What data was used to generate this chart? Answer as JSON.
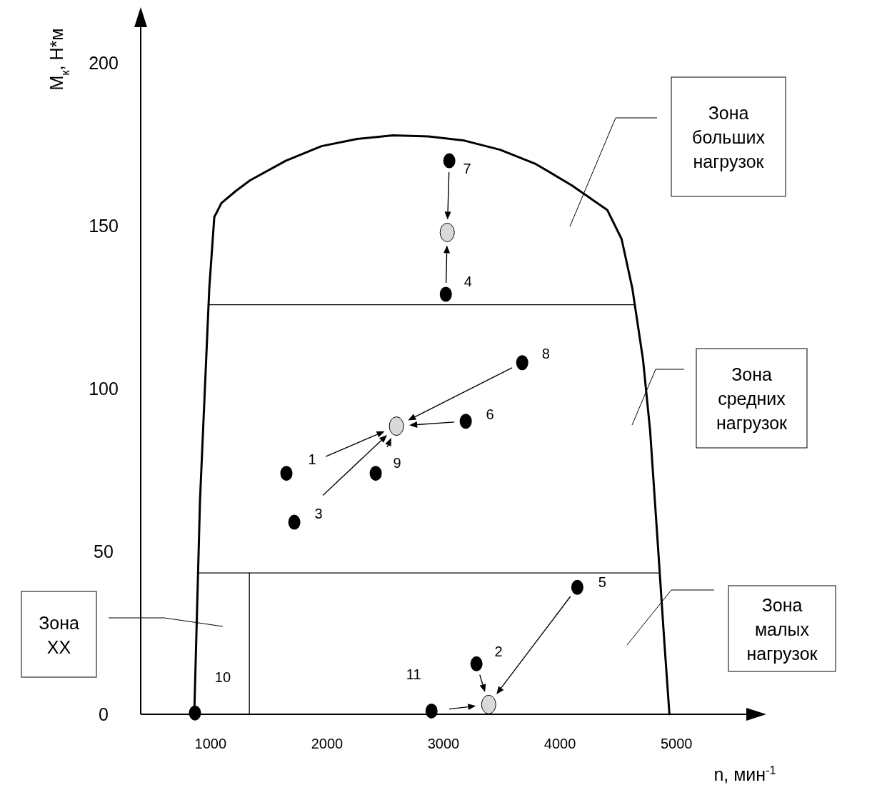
{
  "chart_data": {
    "type": "scatter",
    "xlabel": "n, мин$^{-1}$",
    "ylabel": "M$_{к}$, Н*м",
    "xlim": [
      400,
      5600
    ],
    "ylim": [
      0,
      215
    ],
    "xticks": [
      1000,
      2000,
      3000,
      4000,
      5000
    ],
    "yticks": [
      0,
      50,
      100,
      150,
      200
    ],
    "grid": false,
    "series": [
      {
        "type": "line",
        "color": "#000000",
        "marker": "none",
        "x": [
          860,
          909,
          989,
          1032,
          1093,
          1216,
          1339,
          1645,
          1952,
          2259,
          2566,
          2872,
          3179,
          3486,
          3793,
          4099,
          4406,
          4529,
          4621,
          4713,
          4774,
          4836,
          4897,
          4940
        ],
        "values": [
          0,
          65.4,
          130.9,
          152.7,
          157,
          160.7,
          164,
          170,
          174.5,
          176.7,
          177.8,
          177.5,
          176.2,
          173.4,
          169,
          162.5,
          154.9,
          146,
          130.9,
          109,
          87.2,
          54.5,
          21.8,
          0
        ]
      },
      {
        "type": "line",
        "color": "#000000",
        "marker": "none",
        "x": [
          989,
          4639
        ],
        "values": [
          125.8,
          125.8
        ]
      },
      {
        "type": "line",
        "color": "#000000",
        "marker": "none",
        "x": [
          903,
          4848
        ],
        "values": [
          43.4,
          43.4
        ]
      },
      {
        "type": "line",
        "color": "#000000",
        "marker": "none",
        "x": [
          1333,
          1333
        ],
        "values": [
          0,
          43.4
        ]
      },
      {
        "color": "#000000",
        "marker": "circle",
        "x": [
          1651,
          3283,
          1719,
          3020,
          4149,
          3191,
          3050,
          3676,
          2418,
          866,
          2897
        ],
        "values": [
          74,
          15.5,
          59,
          129,
          39,
          90,
          170,
          108,
          74,
          0.4,
          1
        ]
      },
      {
        "color": "#d9d9d9",
        "marker": "circle",
        "x": [
          3032,
          2596,
          3388
        ],
        "values": [
          148,
          88.5,
          3
        ]
      }
    ],
    "annotations": [
      "1",
      "2",
      "3",
      "4",
      "5",
      "6",
      "7",
      "8",
      "9",
      "10",
      "11",
      "Зона больших нагрузок",
      "Зона средних нагрузок",
      "Зона малых нагрузок",
      "Зона XX"
    ]
  }
}
